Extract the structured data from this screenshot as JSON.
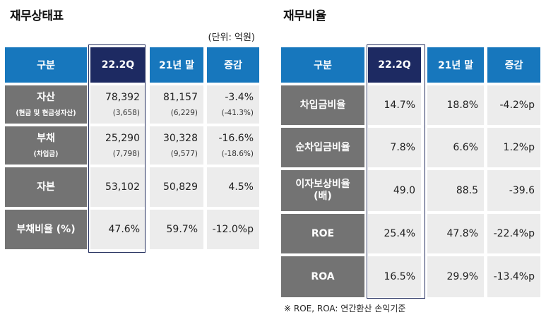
{
  "left": {
    "title": "재무상태표",
    "unit": "(단위: 억원)",
    "headers": [
      "구분",
      "22.2Q",
      "21년 말",
      "증감"
    ],
    "rows": [
      {
        "label": "자산",
        "label_sub": "(현금 및 현금성자산)",
        "q": "78,392",
        "q_sub": "(3,658)",
        "prev": "81,157",
        "prev_sub": "(6,229)",
        "diff": "-3.4%",
        "diff_sub": "(-41.3%)"
      },
      {
        "label": "부채",
        "label_sub": "(차입금)",
        "q": "25,290",
        "q_sub": "(7,798)",
        "prev": "30,328",
        "prev_sub": "(9,577)",
        "diff": "-16.6%",
        "diff_sub": "(-18.6%)"
      },
      {
        "label": "자본",
        "label_sub": "",
        "q": "53,102",
        "q_sub": "",
        "prev": "50,829",
        "prev_sub": "",
        "diff": "4.5%",
        "diff_sub": ""
      },
      {
        "label": "부채비율 (%)",
        "label_sub": "",
        "q": "47.6%",
        "q_sub": "",
        "prev": "59.7%",
        "prev_sub": "",
        "diff": "-12.0%p",
        "diff_sub": ""
      }
    ]
  },
  "right": {
    "title": "재무비율",
    "headers": [
      "구분",
      "22.2Q",
      "21년 말",
      "증감"
    ],
    "rows": [
      {
        "label": "차입금비율",
        "label2": "",
        "q": "14.7%",
        "prev": "18.8%",
        "diff": "-4.2%p"
      },
      {
        "label": "순차입금비율",
        "label2": "",
        "q": "7.8%",
        "prev": "6.6%",
        "diff": "1.2%p"
      },
      {
        "label": "이자보상비율",
        "label2": "(배)",
        "q": "49.0",
        "prev": "88.5",
        "diff": "-39.6"
      },
      {
        "label": "ROE",
        "label2": "",
        "q": "25.4%",
        "prev": "47.8%",
        "diff": "-22.4%p"
      },
      {
        "label": "ROA",
        "label2": "",
        "q": "16.5%",
        "prev": "29.9%",
        "diff": "-13.4%p"
      }
    ],
    "note": "※ ROE, ROA: 연간환산 손익기준"
  },
  "colors": {
    "header": "#1777bd",
    "current_header": "#1d2a62",
    "label_bg": "#737373",
    "cell_bg": "#ececec"
  }
}
